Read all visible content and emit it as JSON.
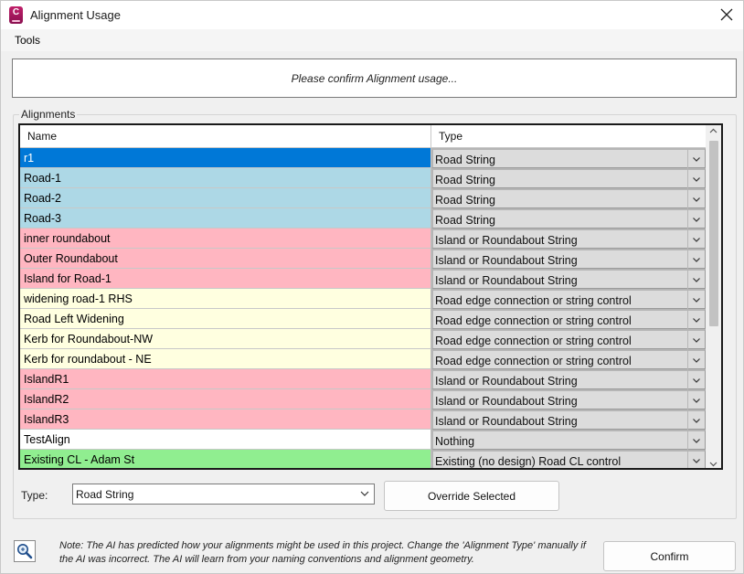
{
  "window": {
    "title": "Alignment Usage",
    "app_icon_letter": "C"
  },
  "menu": {
    "tools": "Tools"
  },
  "prompt": "Please confirm Alignment usage...",
  "group_label": "Alignments",
  "grid": {
    "columns": {
      "name": "Name",
      "type": "Type"
    },
    "rows": [
      {
        "name": "r1",
        "type": "Road String",
        "color": "#0078d7",
        "selected": true
      },
      {
        "name": "Road-1",
        "type": "Road String",
        "color": "#add8e6"
      },
      {
        "name": "Road-2",
        "type": "Road String",
        "color": "#add8e6"
      },
      {
        "name": "Road-3",
        "type": "Road String",
        "color": "#add8e6"
      },
      {
        "name": "inner roundabout",
        "type": "Island or Roundabout String",
        "color": "#ffb6c1"
      },
      {
        "name": "Outer Roundabout",
        "type": "Island or Roundabout String",
        "color": "#ffb6c1"
      },
      {
        "name": "Island for Road-1",
        "type": "Island or Roundabout String",
        "color": "#ffb6c1"
      },
      {
        "name": "widening road-1 RHS",
        "type": "Road edge connection or string control",
        "color": "#ffffe0"
      },
      {
        "name": "Road Left Widening",
        "type": "Road edge connection or string control",
        "color": "#ffffe0"
      },
      {
        "name": "Kerb for Roundabout-NW",
        "type": "Road edge connection or string control",
        "color": "#ffffe0"
      },
      {
        "name": "Kerb for roundabout - NE",
        "type": "Road edge connection or string control",
        "color": "#ffffe0"
      },
      {
        "name": "IslandR1",
        "type": "Island or Roundabout String",
        "color": "#ffb6c1"
      },
      {
        "name": "IslandR2",
        "type": "Island or Roundabout String",
        "color": "#ffb6c1"
      },
      {
        "name": "IslandR3",
        "type": "Island or Roundabout String",
        "color": "#ffb6c1"
      },
      {
        "name": "TestAlign",
        "type": "Nothing",
        "color": "#ffffff"
      },
      {
        "name": "Existing CL - Adam St",
        "type": "Existing (no design) Road CL control",
        "color": "#90ee90"
      }
    ]
  },
  "type_field": {
    "label": "Type:",
    "value": "Road String"
  },
  "buttons": {
    "override": "Override Selected",
    "confirm": "Confirm"
  },
  "note": "Note: The AI has predicted how your alignments might be used in this project. Change the 'Alignment Type' manually if the AI was incorrect. The AI will learn from your naming conventions and alignment geometry."
}
